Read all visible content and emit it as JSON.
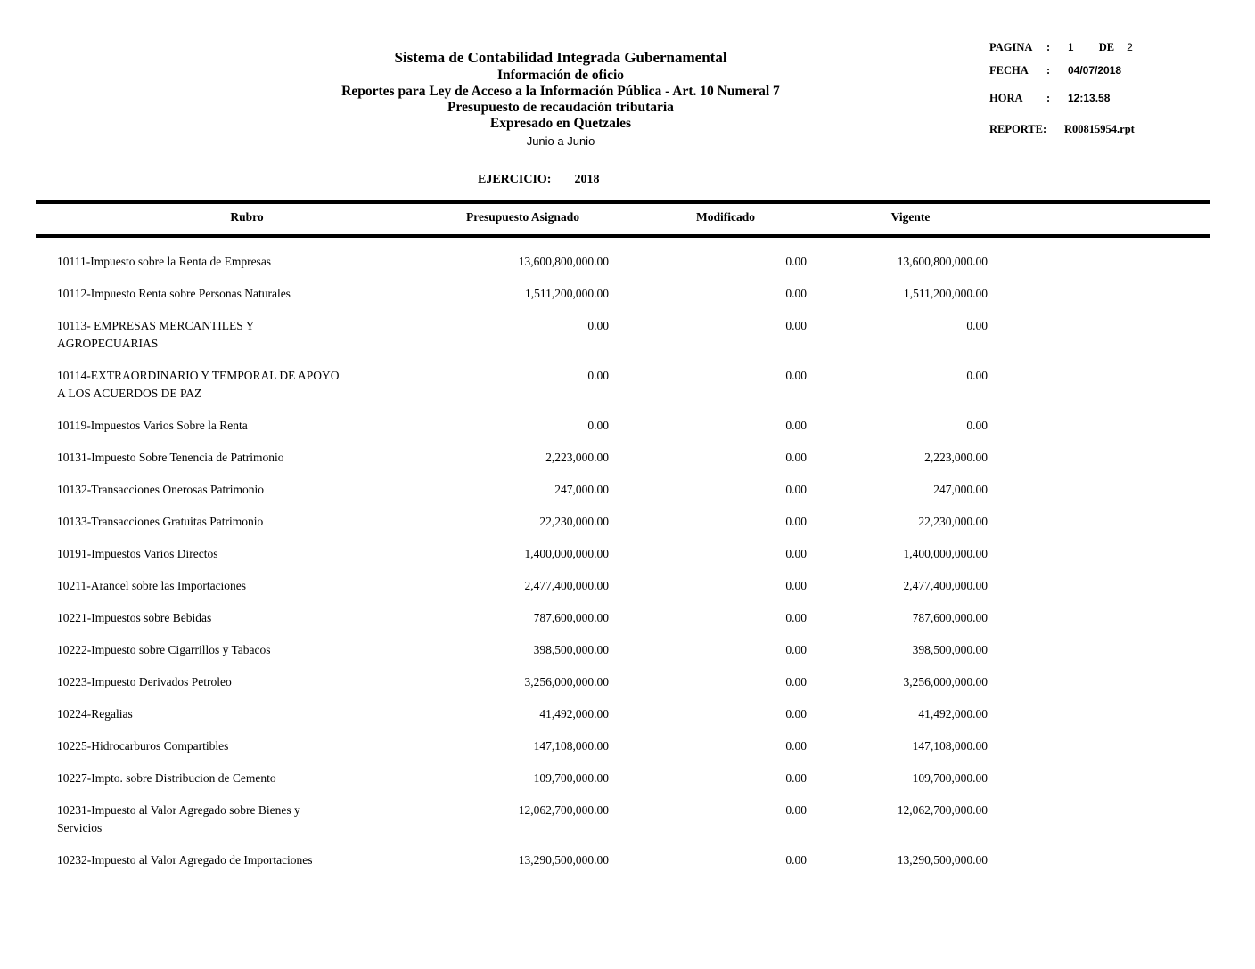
{
  "colors": {
    "background": "#ffffff",
    "text": "#000000",
    "rule": "#000000"
  },
  "header": {
    "title_lines": [
      "Sistema de Contabilidad Integrada Gubernamental",
      "Información de oficio",
      "Reportes para Ley de Acceso a la Información Pública - Art. 10 Numeral 7",
      "Presupuesto de recaudación tributaria",
      "Expresado en Quetzales",
      "Junio  a  Junio"
    ]
  },
  "meta": {
    "pagina": {
      "label": "PAGINA",
      "colon": ":",
      "page": "1",
      "de": "DE",
      "total": "2"
    },
    "fecha": {
      "label": "FECHA",
      "colon": ":",
      "value": "04/07/2018"
    },
    "hora": {
      "label": "HORA",
      "colon": ":",
      "value": "12:13.58"
    },
    "reporte": {
      "label": "REPORTE:",
      "value": "R00815954.rpt"
    }
  },
  "ejercicio": {
    "label": "EJERCICIO:",
    "value": "2018"
  },
  "table": {
    "columns": [
      "Rubro",
      "Presupuesto Asignado",
      "Modificado",
      "Vigente"
    ],
    "rows": [
      {
        "rubro": "10111-Impuesto sobre la Renta de Empresas",
        "asignado": "13,600,800,000.00",
        "modificado": "0.00",
        "vigente": "13,600,800,000.00"
      },
      {
        "rubro": "10112-Impuesto Renta sobre Personas Naturales",
        "asignado": "1,511,200,000.00",
        "modificado": "0.00",
        "vigente": "1,511,200,000.00"
      },
      {
        "rubro": "10113- EMPRESAS MERCANTILES Y\nAGROPECUARIAS",
        "asignado": "0.00",
        "modificado": "0.00",
        "vigente": "0.00"
      },
      {
        "rubro": "10114-EXTRAORDINARIO Y TEMPORAL DE APOYO\nA LOS ACUERDOS DE PAZ",
        "asignado": "0.00",
        "modificado": "0.00",
        "vigente": "0.00"
      },
      {
        "rubro": "10119-Impuestos Varios Sobre la Renta",
        "asignado": "0.00",
        "modificado": "0.00",
        "vigente": "0.00"
      },
      {
        "rubro": "10131-Impuesto Sobre Tenencia de Patrimonio",
        "asignado": "2,223,000.00",
        "modificado": "0.00",
        "vigente": "2,223,000.00"
      },
      {
        "rubro": "10132-Transacciones Onerosas Patrimonio",
        "asignado": "247,000.00",
        "modificado": "0.00",
        "vigente": "247,000.00"
      },
      {
        "rubro": "10133-Transacciones Gratuitas Patrimonio",
        "asignado": "22,230,000.00",
        "modificado": "0.00",
        "vigente": "22,230,000.00"
      },
      {
        "rubro": "10191-Impuestos Varios Directos",
        "asignado": "1,400,000,000.00",
        "modificado": "0.00",
        "vigente": "1,400,000,000.00"
      },
      {
        "rubro": "10211-Arancel sobre las Importaciones",
        "asignado": "2,477,400,000.00",
        "modificado": "0.00",
        "vigente": "2,477,400,000.00"
      },
      {
        "rubro": "10221-Impuestos sobre Bebidas",
        "asignado": "787,600,000.00",
        "modificado": "0.00",
        "vigente": "787,600,000.00"
      },
      {
        "rubro": "10222-Impuesto sobre Cigarrillos y Tabacos",
        "asignado": "398,500,000.00",
        "modificado": "0.00",
        "vigente": "398,500,000.00"
      },
      {
        "rubro": "10223-Impuesto Derivados Petroleo",
        "asignado": "3,256,000,000.00",
        "modificado": "0.00",
        "vigente": "3,256,000,000.00"
      },
      {
        "rubro": "10224-Regalias",
        "asignado": "41,492,000.00",
        "modificado": "0.00",
        "vigente": "41,492,000.00"
      },
      {
        "rubro": "10225-Hidrocarburos Compartibles",
        "asignado": "147,108,000.00",
        "modificado": "0.00",
        "vigente": "147,108,000.00"
      },
      {
        "rubro": "10227-Impto. sobre Distribucion de Cemento",
        "asignado": "109,700,000.00",
        "modificado": "0.00",
        "vigente": "109,700,000.00"
      },
      {
        "rubro": "10231-Impuesto al Valor Agregado sobre Bienes y\nServicios",
        "asignado": "12,062,700,000.00",
        "modificado": "0.00",
        "vigente": "12,062,700,000.00"
      },
      {
        "rubro": "10232-Impuesto al Valor Agregado de Importaciones",
        "asignado": "13,290,500,000.00",
        "modificado": "0.00",
        "vigente": "13,290,500,000.00"
      }
    ]
  }
}
